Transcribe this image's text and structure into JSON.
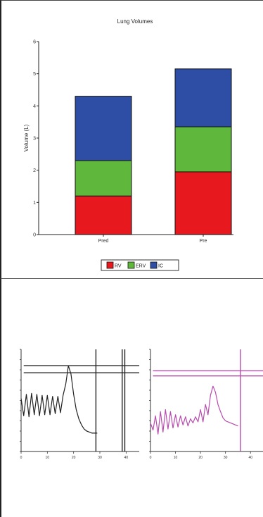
{
  "chart_data": [
    {
      "type": "bar",
      "stacked": true,
      "title": "Lung Volumes",
      "ylabel": "Volume (L)",
      "xlabel": "",
      "categories": [
        "Pred",
        "Pre"
      ],
      "ylim": [
        0,
        6
      ],
      "yticks": [
        0,
        1,
        2,
        3,
        4,
        5,
        6
      ],
      "series": [
        {
          "name": "RV",
          "values": [
            1.2,
            1.95
          ],
          "color": "#e8191e"
        },
        {
          "name": "ERV",
          "values": [
            1.1,
            1.4
          ],
          "color": "#5fb83b"
        },
        {
          "name": "IC",
          "values": [
            2.0,
            1.8
          ],
          "color": "#2e4ea6"
        }
      ],
      "legend": "bottom",
      "grid": false
    },
    {
      "type": "line",
      "title": "",
      "xlim": [
        0,
        45
      ],
      "xticks": [
        0,
        10,
        20,
        30,
        40
      ],
      "ylim": [
        0,
        10
      ],
      "color": "#222222",
      "series": [
        {
          "x": [
            0,
            1,
            2,
            3,
            4,
            5,
            6,
            7,
            8,
            9,
            10,
            11,
            12,
            13,
            14,
            15,
            16,
            17,
            18,
            19,
            20,
            21,
            22,
            23,
            24,
            25,
            26,
            27,
            28,
            29
          ],
          "y": [
            5.2,
            3.5,
            5.6,
            3.4,
            5.7,
            3.6,
            5.6,
            3.5,
            5.5,
            3.6,
            5.5,
            3.6,
            5.4,
            3.7,
            5.4,
            3.8,
            5.5,
            6.6,
            8.4,
            7.6,
            5.6,
            4.1,
            3.2,
            2.6,
            2.2,
            2.0,
            1.9,
            1.8,
            1.8,
            1.8
          ]
        }
      ],
      "reference_lines": [
        8.4,
        7.7
      ],
      "vertical_lines": [
        28.5,
        38.5,
        39.5
      ]
    },
    {
      "type": "line",
      "title": "",
      "xlim": [
        0,
        45
      ],
      "xticks": [
        0,
        10,
        20,
        30,
        40
      ],
      "ylim": [
        0,
        10
      ],
      "color": "#b84cae",
      "series": [
        {
          "x": [
            0,
            1,
            2,
            3,
            4,
            5,
            6,
            7,
            8,
            9,
            10,
            11,
            12,
            13,
            14,
            15,
            16,
            17,
            18,
            19,
            20,
            21,
            22,
            23,
            24,
            25,
            26,
            27,
            28,
            29,
            30,
            31,
            32,
            33,
            34,
            35
          ],
          "y": [
            2.8,
            2.1,
            3.5,
            1.7,
            3.9,
            1.9,
            4.1,
            2.2,
            3.9,
            2.3,
            3.6,
            2.4,
            3.5,
            2.6,
            3.4,
            2.5,
            3.2,
            2.8,
            3.4,
            2.9,
            4.1,
            2.9,
            4.6,
            3.6,
            5.5,
            6.4,
            5.8,
            4.6,
            3.9,
            3.3,
            3.0,
            2.9,
            2.8,
            2.7,
            2.6,
            2.5
          ]
        }
      ],
      "reference_lines": [
        7.9,
        7.4
      ],
      "vertical_lines": [
        36
      ]
    }
  ]
}
